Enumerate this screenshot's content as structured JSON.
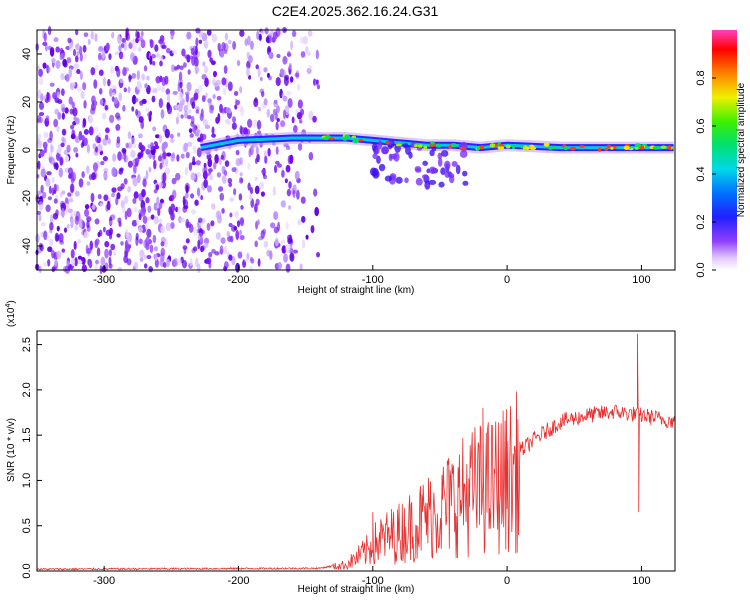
{
  "chart_data": [
    {
      "type": "heatmap",
      "title": "C2E4.2025.362.16.24.G31",
      "xlabel": "Height of straight line (km)",
      "ylabel": "Frequency (Hz)",
      "xlim": [
        -350,
        125
      ],
      "ylim": [
        -50,
        50
      ],
      "xticks": [
        -300,
        -200,
        -100,
        0,
        100
      ],
      "yticks": [
        -40,
        -20,
        0,
        20,
        40
      ],
      "colorbar": {
        "label": "Normalized spectral amplitude",
        "range": [
          0.0,
          1.0
        ],
        "ticks": [
          "0.0",
          "0.2",
          "0.4",
          "0.6",
          "0.8"
        ]
      },
      "colormap": [
        "#ffffff",
        "#d9b8ff",
        "#a060ff",
        "#6a00f0",
        "#2020ff",
        "#0090ff",
        "#00e0e0",
        "#00e060",
        "#a0f000",
        "#ffe000",
        "#ff8000",
        "#ff0000",
        "#ff40c0"
      ],
      "ridge": [
        {
          "x": -228,
          "y": 1
        },
        {
          "x": -200,
          "y": 4
        },
        {
          "x": -160,
          "y": 5
        },
        {
          "x": -120,
          "y": 5
        },
        {
          "x": -100,
          "y": 4
        },
        {
          "x": -80,
          "y": 3
        },
        {
          "x": -60,
          "y": 2
        },
        {
          "x": -40,
          "y": 2
        },
        {
          "x": -20,
          "y": 1
        },
        {
          "x": 0,
          "y": 2
        },
        {
          "x": 40,
          "y": 1
        },
        {
          "x": 80,
          "y": 1
        },
        {
          "x": 125,
          "y": 1
        }
      ]
    },
    {
      "type": "line",
      "xlabel": "Height of straight line (km)",
      "ylabel": "SNR (10 * v/v)",
      "multiplier": "(x10",
      "multiplier_exp": "4",
      "multiplier_close": ")",
      "xlim": [
        -350,
        125
      ],
      "ylim": [
        0,
        2.65
      ],
      "xticks": [
        -300,
        -200,
        -100,
        0,
        100
      ],
      "yticks": [
        "0.0",
        "0.5",
        "1.0",
        "1.5",
        "2.0",
        "2.5"
      ],
      "color": "#e83030",
      "envelope": [
        {
          "x": -350,
          "y": 0.02
        },
        {
          "x": -140,
          "y": 0.03
        },
        {
          "x": -120,
          "y": 0.08
        },
        {
          "x": -105,
          "y": 0.25
        },
        {
          "x": -95,
          "y": 0.4
        },
        {
          "x": -80,
          "y": 0.5
        },
        {
          "x": -60,
          "y": 0.7
        },
        {
          "x": -40,
          "y": 0.9
        },
        {
          "x": -25,
          "y": 1.05
        },
        {
          "x": -12,
          "y": 1.1
        },
        {
          "x": 0,
          "y": 1.2
        },
        {
          "x": 20,
          "y": 1.45
        },
        {
          "x": 40,
          "y": 1.65
        },
        {
          "x": 60,
          "y": 1.72
        },
        {
          "x": 80,
          "y": 1.76
        },
        {
          "x": 100,
          "y": 1.72
        },
        {
          "x": 125,
          "y": 1.65
        }
      ],
      "spikes": [
        {
          "x": 97,
          "y": 2.62
        },
        {
          "x": 98,
          "y": 0.65
        },
        {
          "x": -18,
          "y": 1.8
        },
        {
          "x": -100,
          "y": 0.65
        }
      ]
    }
  ]
}
